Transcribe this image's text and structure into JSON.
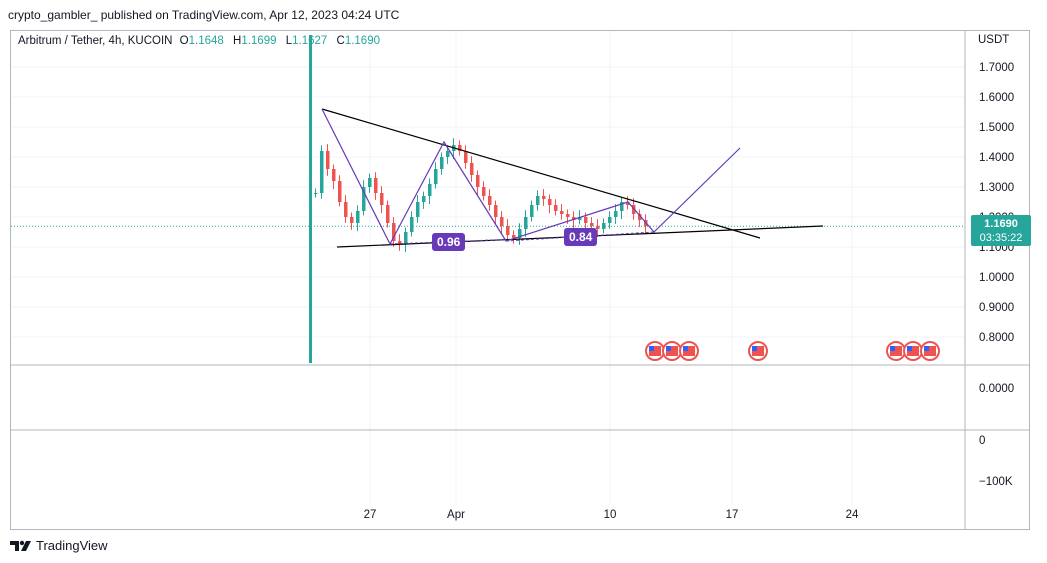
{
  "header": {
    "attribution": "crypto_gambler_ published on TradingView.com, Apr 12, 2023 04:24 UTC"
  },
  "legend": {
    "symbol": "Arbitrum / Tether, 4h, KUCOIN",
    "o_label": "O",
    "o": "1.1648",
    "h_label": "H",
    "h": "1.1699",
    "l_label": "L",
    "l": "1.1627",
    "c_label": "C",
    "c": "1.1690"
  },
  "price_axis": {
    "currency": "USDT"
  },
  "last_price": {
    "price": "1.1690",
    "countdown": "03:35:22"
  },
  "callouts": {
    "a": "0.96",
    "b": "0.84"
  },
  "footer": {
    "brand": "TradingView"
  },
  "colors": {
    "up": "#26a69a",
    "down": "#ef5350",
    "pattern": "#673ab7",
    "trendline": "#000000",
    "grid": "#f0f3fa"
  },
  "icons": {
    "event": "us-flag-icon",
    "logo": "tradingview-logo-icon"
  },
  "chart_data": {
    "type": "candlestick",
    "symbol": "Arbitrum / Tether",
    "interval": "4h",
    "exchange": "KUCOIN",
    "y_ticks": [
      "1.7000",
      "1.6000",
      "1.5000",
      "1.4000",
      "1.3000",
      "1.2000",
      "1.1000",
      "1.0000",
      "0.9000",
      "0.8000"
    ],
    "indicator_ticks_1": [
      "0.0000"
    ],
    "indicator_ticks_2": [
      "0",
      "−100K"
    ],
    "x_ticks": [
      "27",
      "Apr",
      "10",
      "17",
      "24"
    ],
    "ylim": [
      0.75,
      1.75
    ],
    "price_close_approx": [
      1.28,
      1.42,
      1.36,
      1.32,
      1.25,
      1.2,
      1.18,
      1.22,
      1.3,
      1.33,
      1.28,
      1.24,
      1.18,
      1.12,
      1.11,
      1.15,
      1.2,
      1.25,
      1.27,
      1.31,
      1.36,
      1.4,
      1.42,
      1.44,
      1.42,
      1.38,
      1.34,
      1.3,
      1.27,
      1.24,
      1.2,
      1.17,
      1.14,
      1.13,
      1.16,
      1.2,
      1.24,
      1.27,
      1.26,
      1.24,
      1.22,
      1.21,
      1.2,
      1.19,
      1.2,
      1.18,
      1.17,
      1.16,
      1.18,
      1.2,
      1.22,
      1.25,
      1.24,
      1.21,
      1.19,
      1.17
    ],
    "events": [
      "us-flag",
      "us-flag",
      "us-flag",
      "us-flag",
      "us-flag",
      "us-flag",
      "us-flag"
    ]
  }
}
